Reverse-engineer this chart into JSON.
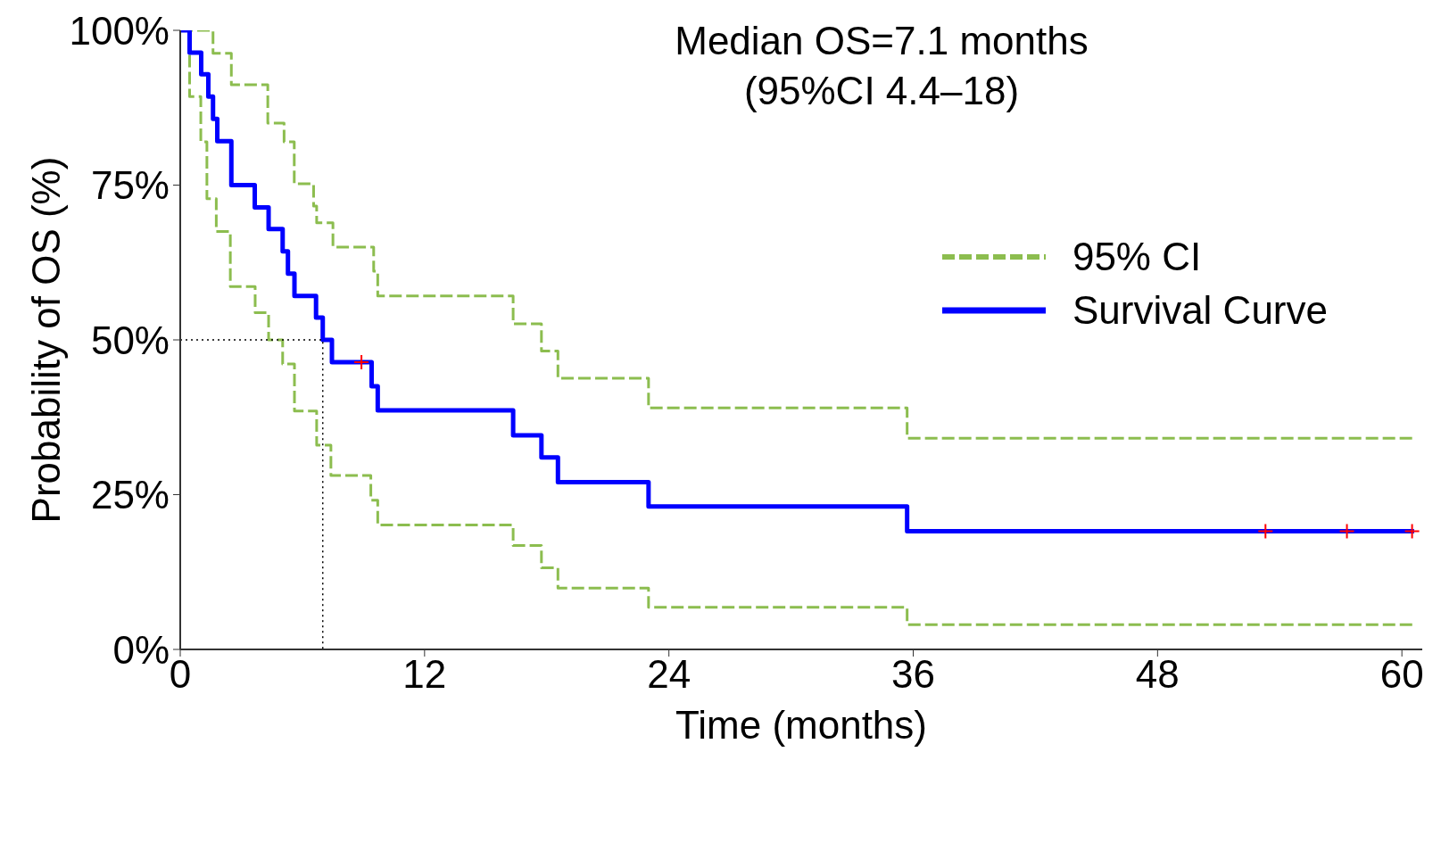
{
  "chart_data": {
    "type": "step",
    "title": "Median OS=7.1 months",
    "subtitle": "(95%CI 4.4–18)",
    "xlabel": "Time (months)",
    "ylabel": "Probability of OS (%)",
    "xlim": [
      0,
      61
    ],
    "xticks": [
      0,
      12,
      24,
      36,
      48,
      60
    ],
    "ylim": [
      0,
      100
    ],
    "yticks": [
      {
        "value": 0,
        "label": "0%"
      },
      {
        "value": 25,
        "label": "25%"
      },
      {
        "value": 50,
        "label": "50%"
      },
      {
        "value": 75,
        "label": "75%"
      },
      {
        "value": 100,
        "label": "100%"
      }
    ],
    "grid": false,
    "legend": "top right",
    "series": [
      {
        "name": "95% CI",
        "color": "#8cbd4f",
        "line_style": "dashed",
        "x": [
          0,
          1.61,
          2.51,
          4.3,
          5.1,
          5.6,
          6.55,
          6.7,
          7.5,
          9.5,
          9.7,
          16.35,
          17.74,
          18.55,
          23.0,
          35.7,
          60.6
        ],
        "values": [
          100,
          96.3,
          91.2,
          85.0,
          82.0,
          75.2,
          71.6,
          68.9,
          65.0,
          61.1,
          57.1,
          52.6,
          48.2,
          43.8,
          39.0,
          34.1,
          34.1
        ]
      },
      {
        "color": "#8cbd4f",
        "line_style": "dashed",
        "x": [
          0,
          0.46,
          1.01,
          1.31,
          1.77,
          2.46,
          3.68,
          4.34,
          5.03,
          5.61,
          6.7,
          7.4,
          9.36,
          9.7,
          16.35,
          17.74,
          18.55,
          23.0,
          35.7,
          60.6
        ],
        "values": [
          100,
          89.3,
          82.0,
          72.8,
          67.5,
          58.6,
          54.4,
          50.0,
          46.1,
          38.5,
          33.0,
          28.1,
          24.1,
          20.1,
          16.8,
          13.2,
          9.9,
          6.8,
          4.0,
          4.0
        ]
      },
      {
        "name": "Survival Curve",
        "color": "#0000ff",
        "line_style": "solid",
        "x": [
          0,
          0.46,
          1.03,
          1.38,
          1.61,
          1.82,
          2.51,
          3.66,
          4.34,
          5.03,
          5.29,
          5.61,
          6.67,
          7.0,
          7.45,
          9.4,
          9.7,
          16.35,
          17.74,
          18.55,
          23.0,
          35.7,
          60.6
        ],
        "values": [
          100,
          96.4,
          92.9,
          89.3,
          85.7,
          82.1,
          75.0,
          71.4,
          67.9,
          64.3,
          60.7,
          57.1,
          53.6,
          50.0,
          46.4,
          42.5,
          38.6,
          34.6,
          31.0,
          27.0,
          23.1,
          19.1,
          19.1
        ]
      },
      {
        "type": "scatter",
        "marker": "cross",
        "color": "#ff0000",
        "x": [
          8.9,
          53.3,
          57.3,
          60.5
        ],
        "values": [
          46.4,
          19.1,
          19.1,
          19.1
        ]
      },
      {
        "type": "line",
        "color": "#000000",
        "line_style": "dotted",
        "x": [
          0,
          7.0,
          7.0
        ],
        "values": [
          50,
          50,
          0
        ]
      }
    ]
  }
}
